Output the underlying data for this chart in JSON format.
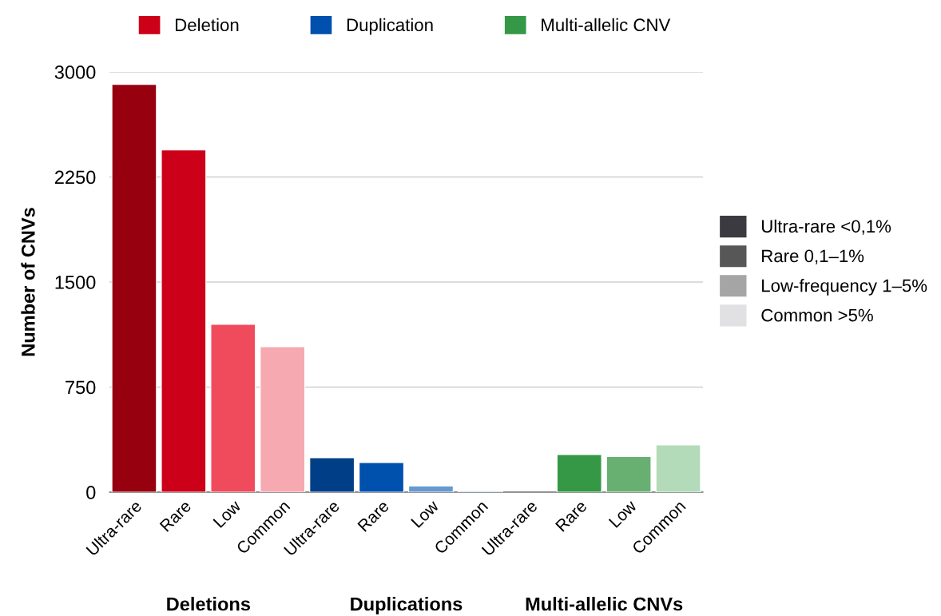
{
  "chart_data": {
    "type": "bar",
    "ylabel": "Number of CNVs",
    "categories": [
      "Ultra-rare",
      "Rare",
      "Low",
      "Common",
      "Ultra-rare",
      "Rare",
      "Low",
      "Common",
      "Ultra-rare",
      "Rare",
      "Low",
      "Common"
    ],
    "series": [
      {
        "name": "Deletion",
        "color": "#cc0018",
        "values": [
          2910,
          2443,
          1198,
          1038,
          null,
          null,
          null,
          null,
          null,
          null,
          null,
          null
        ],
        "colors": [
          "#97000f",
          "#cc0018",
          "#f04b5c",
          "#f6a9b1",
          null,
          null,
          null,
          null,
          null,
          null,
          null,
          null
        ]
      },
      {
        "name": "Duplication",
        "color": "#0050ad",
        "values": [
          null,
          null,
          null,
          null,
          245,
          211,
          44,
          10,
          null,
          null,
          null,
          null
        ],
        "colors": [
          null,
          null,
          null,
          null,
          "#003f87",
          "#0050ad",
          "#6699d0",
          "#b3cbe8",
          null,
          null,
          null,
          null
        ]
      },
      {
        "name": "Multi-allelic CNV",
        "color": "#359847",
        "values": [
          null,
          null,
          null,
          null,
          null,
          null,
          null,
          null,
          null,
          268,
          254,
          337
        ],
        "colors": [
          null,
          null,
          null,
          null,
          null,
          null,
          null,
          null,
          "#1e6b2e",
          "#359847",
          "#68b072",
          "#b3dab9"
        ]
      },
      {
        "name": "Ultra-rare <0,1%",
        "color": "#3a3a40",
        "values": [
          null,
          null,
          null,
          null,
          null,
          null,
          null,
          null,
          null,
          null,
          null,
          null
        ]
      },
      {
        "name": "Rare 0,1–1%",
        "color": "#575757",
        "values": [
          null,
          null,
          null,
          null,
          null,
          null,
          null,
          null,
          null,
          null,
          null,
          null
        ]
      },
      {
        "name": "Low-frequency 1–5%",
        "color": "#a5a5a5",
        "values": [
          null,
          null,
          null,
          null,
          null,
          null,
          null,
          null,
          null,
          null,
          null,
          null
        ]
      },
      {
        "name": "Common >5%",
        "color": "#e1e1e3",
        "values": [
          null,
          null,
          null,
          null,
          null,
          null,
          null,
          null,
          null,
          null,
          null,
          null
        ]
      }
    ],
    "ylim": [
      0,
      3000
    ],
    "yticks": [
      0,
      750,
      1500,
      2250,
      3000
    ],
    "grid": "y",
    "legend": "top",
    "annotations": [
      "Deletions",
      "Duplications",
      "Multi-allelic CNVs"
    ]
  }
}
